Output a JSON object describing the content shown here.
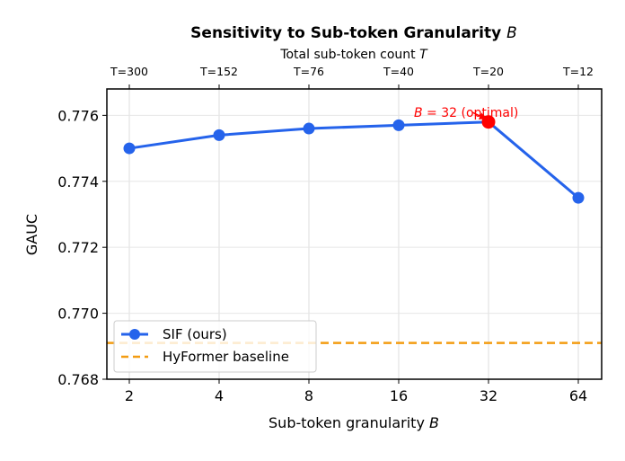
{
  "chart_data": {
    "type": "line",
    "title_prefix": "Sensitivity to Sub-token Granularity ",
    "title_var": "B",
    "xlabel_prefix": "Sub-token granularity ",
    "xlabel_var": "B",
    "ylabel": "GAUC",
    "top_xlabel_prefix": "Total sub-token count ",
    "top_xlabel_var": "T",
    "categories": [
      "2",
      "4",
      "8",
      "16",
      "32",
      "64"
    ],
    "top_categories": [
      "T=300",
      "T=152",
      "T=76",
      "T=40",
      "T=20",
      "T=12"
    ],
    "yticks": [
      "0.768",
      "0.770",
      "0.772",
      "0.774",
      "0.776"
    ],
    "ylim": [
      0.768,
      0.7768
    ],
    "grid": true,
    "series": [
      {
        "name": "SIF (ours)",
        "color": "#2563eb",
        "values": [
          0.775,
          0.7754,
          0.7756,
          0.7757,
          0.7758,
          0.7735
        ]
      }
    ],
    "baseline": {
      "name": "HyFormer baseline",
      "value": 0.7691,
      "color": "#f39c12"
    },
    "highlight": {
      "index": 4,
      "color": "#ff0000",
      "label_var": "B",
      "label_rest": " = 32 (optimal)"
    },
    "legend_loc": "lower-left"
  }
}
